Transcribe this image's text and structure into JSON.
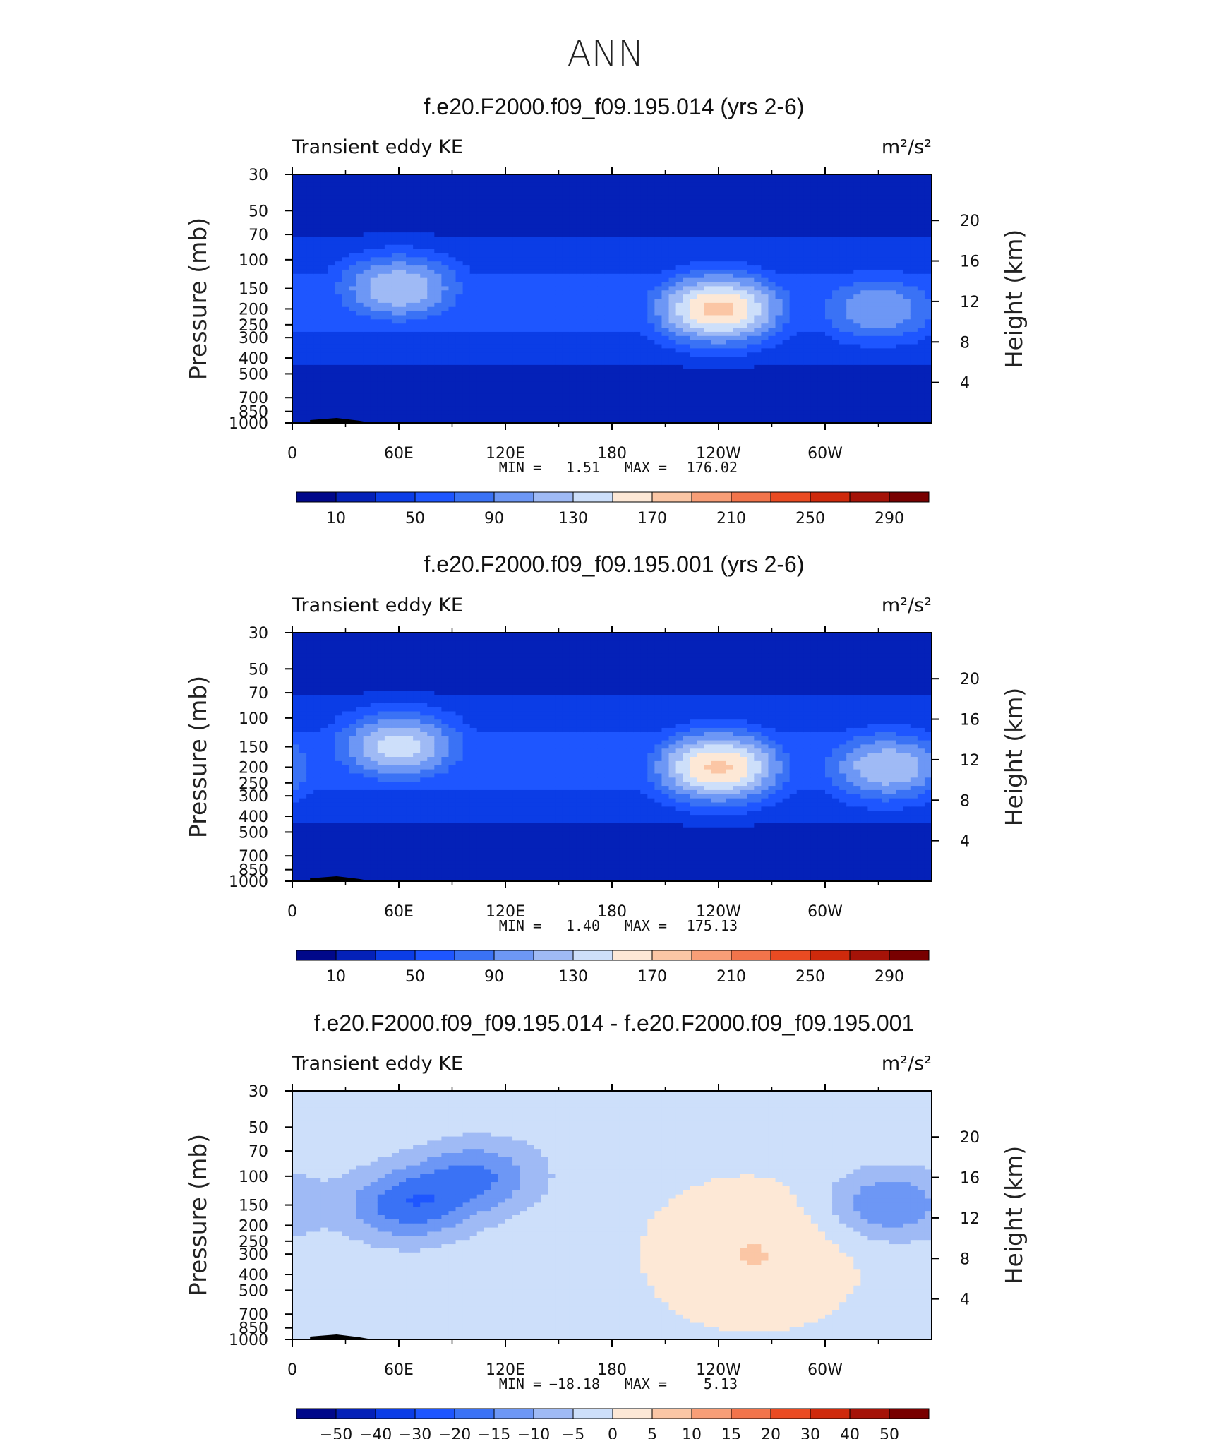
{
  "figure": {
    "title": "ANN"
  },
  "chart_data": [
    {
      "type": "heatmap",
      "title": "f.e20.F2000.f09_f09.195.014 (yrs 2-6)",
      "variable": "Transient eddy KE",
      "units": "m²/s²",
      "ylabel": "Pressure (mb)",
      "ylabel_right": "Height (km)",
      "x_ticks": [
        "0",
        "60E",
        "120E",
        "180",
        "120W",
        "60W"
      ],
      "y_ticks": [
        "30",
        "50",
        "70",
        "100",
        "150",
        "200",
        "250",
        "300",
        "400",
        "500",
        "700",
        "850",
        "1000"
      ],
      "y_ticks_right": [
        "20",
        "16",
        "12",
        "8",
        "4"
      ],
      "min_label": "MIN =",
      "min_value": "1.51",
      "max_label": "MAX =",
      "max_value": "176.02",
      "colorbar_labels": [
        "10",
        "50",
        "90",
        "130",
        "170",
        "210",
        "250",
        "290"
      ],
      "colorbar_colors": [
        "#00088a",
        "#0421b8",
        "#0b3de6",
        "#1e56ff",
        "#3a72f5",
        "#6d97f5",
        "#9fbaf5",
        "#cddffa",
        "#fde8d6",
        "#fbc6a5",
        "#f89e77",
        "#f2744b",
        "#ea4b22",
        "#cf2a0c",
        "#a51308",
        "#780000"
      ],
      "jet_maxima": [
        {
          "lon": 60,
          "pressure": 150,
          "value": 130
        },
        {
          "lon": 240,
          "pressure": 200,
          "value": 176.02
        },
        {
          "lon": 330,
          "pressure": 200,
          "value": 110
        }
      ]
    },
    {
      "type": "heatmap",
      "title": "f.e20.F2000.f09_f09.195.001 (yrs 2-6)",
      "variable": "Transient eddy KE",
      "units": "m²/s²",
      "ylabel": "Pressure (mb)",
      "ylabel_right": "Height (km)",
      "x_ticks": [
        "0",
        "60E",
        "120E",
        "180",
        "120W",
        "60W"
      ],
      "y_ticks": [
        "30",
        "50",
        "70",
        "100",
        "150",
        "200",
        "250",
        "300",
        "400",
        "500",
        "700",
        "850",
        "1000"
      ],
      "y_ticks_right": [
        "20",
        "16",
        "12",
        "8",
        "4"
      ],
      "min_label": "MIN =",
      "min_value": "1.40",
      "max_label": "MAX =",
      "max_value": "175.13",
      "colorbar_labels": [
        "10",
        "50",
        "90",
        "130",
        "170",
        "210",
        "250",
        "290"
      ],
      "colorbar_colors": [
        "#00088a",
        "#0421b8",
        "#0b3de6",
        "#1e56ff",
        "#3a72f5",
        "#6d97f5",
        "#9fbaf5",
        "#cddffa",
        "#fde8d6",
        "#fbc6a5",
        "#f89e77",
        "#f2744b",
        "#ea4b22",
        "#cf2a0c",
        "#a51308",
        "#780000"
      ],
      "jet_maxima": [
        {
          "lon": 60,
          "pressure": 150,
          "value": 140
        },
        {
          "lon": 240,
          "pressure": 200,
          "value": 175.13
        },
        {
          "lon": 335,
          "pressure": 200,
          "value": 130
        }
      ]
    },
    {
      "type": "heatmap",
      "title": "f.e20.F2000.f09_f09.195.014 - f.e20.F2000.f09_f09.195.001",
      "variable": "Transient eddy KE",
      "units": "m²/s²",
      "ylabel": "Pressure (mb)",
      "ylabel_right": "Height (km)",
      "x_ticks": [
        "0",
        "60E",
        "120E",
        "180",
        "120W",
        "60W"
      ],
      "y_ticks": [
        "30",
        "50",
        "70",
        "100",
        "150",
        "200",
        "250",
        "300",
        "400",
        "500",
        "700",
        "850",
        "1000"
      ],
      "y_ticks_right": [
        "20",
        "16",
        "12",
        "8",
        "4"
      ],
      "min_label": "MIN =",
      "min_value": "−18.18",
      "max_label": "MAX =",
      "max_value": "5.13",
      "colorbar_labels": [
        "−50",
        "−40",
        "−30",
        "−20",
        "−15",
        "−10",
        "−5",
        "0",
        "5",
        "10",
        "15",
        "20",
        "30",
        "40",
        "50"
      ],
      "colorbar_colors": [
        "#00088a",
        "#0421b8",
        "#0b3de6",
        "#1e56ff",
        "#3a72f5",
        "#6d97f5",
        "#9fbaf5",
        "#cddffa",
        "#fde8d6",
        "#fbc6a5",
        "#f89e77",
        "#f2744b",
        "#ea4b22",
        "#cf2a0c",
        "#a51308",
        "#780000"
      ],
      "jet_maxima": [
        {
          "lon": 105,
          "pressure": 100,
          "value": -15
        },
        {
          "lon": 65,
          "pressure": 150,
          "value": -18.18
        },
        {
          "lon": 335,
          "pressure": 150,
          "value": -15
        },
        {
          "lon": 260,
          "pressure": 300,
          "value": 5.13
        }
      ]
    }
  ]
}
